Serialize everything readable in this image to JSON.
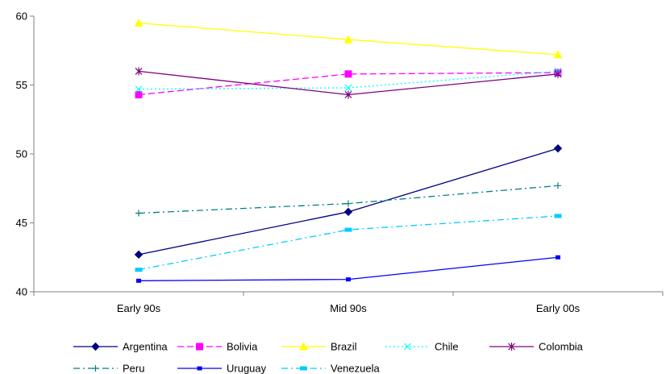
{
  "chart_data": {
    "type": "line",
    "title": "",
    "xlabel": "",
    "ylabel": "",
    "categories": [
      "Early 90s",
      "Mid 90s",
      "Early 00s"
    ],
    "ylim": [
      40,
      60
    ],
    "yticks": [
      40,
      45,
      50,
      55,
      60
    ],
    "grid": false,
    "legend": "bottom",
    "series": [
      {
        "name": "Argentina",
        "values": [
          42.7,
          45.8,
          50.4
        ],
        "color": "#000080",
        "dash": "solid",
        "marker": "diamond"
      },
      {
        "name": "Bolivia",
        "values": [
          54.3,
          55.8,
          55.9
        ],
        "color": "#FF00FF",
        "dash": "dashed",
        "marker": "square"
      },
      {
        "name": "Brazil",
        "values": [
          59.5,
          58.3,
          57.2
        ],
        "color": "#FFFF00",
        "dash": "solid",
        "marker": "triangle"
      },
      {
        "name": "Chile",
        "values": [
          54.7,
          54.8,
          56.0
        ],
        "color": "#00FFFF",
        "dash": "dotted",
        "marker": "x"
      },
      {
        "name": "Colombia",
        "values": [
          56.0,
          54.3,
          55.8
        ],
        "color": "#800080",
        "dash": "solid",
        "marker": "star"
      },
      {
        "name": "Peru",
        "values": [
          45.7,
          46.4,
          47.7
        ],
        "color": "#008080",
        "dash": "dashdot",
        "marker": "plus"
      },
      {
        "name": "Uruguay",
        "values": [
          40.8,
          40.9,
          42.5
        ],
        "color": "#0000FF",
        "dash": "solid",
        "marker": "smallsquare"
      },
      {
        "name": "Venezuela",
        "values": [
          41.6,
          44.5,
          45.5
        ],
        "color": "#00CCFF",
        "dash": "dashdot",
        "marker": "dash"
      }
    ]
  }
}
